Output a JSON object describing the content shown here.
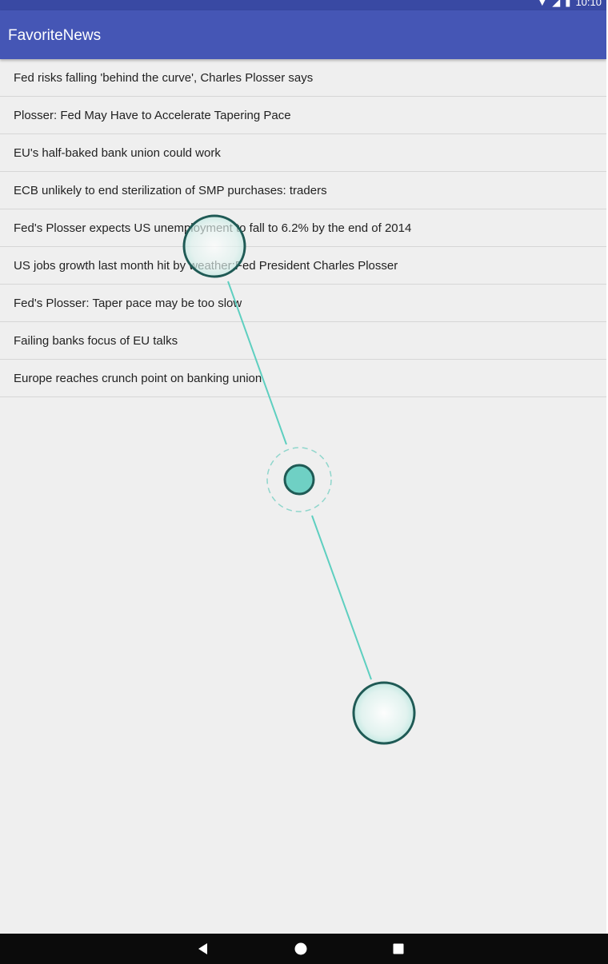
{
  "status_bar": {
    "time": "10:10",
    "icons": [
      "wifi-icon",
      "signal-icon",
      "battery-icon"
    ]
  },
  "app_bar": {
    "title": "FavoriteNews",
    "color": "#4556b5"
  },
  "news": [
    "Fed risks falling 'behind the curve', Charles Plosser says",
    "Plosser: Fed May Have to Accelerate Tapering Pace",
    "EU's half-baked bank union could work",
    "ECB unlikely to end sterilization of SMP purchases: traders",
    "Fed's Plosser expects US unemployment to fall to 6.2% by the end of 2014",
    "US jobs growth last month hit by weather:Fed President Charles Plosser",
    "Fed's Plosser: Taper pace may be too slow",
    "Failing banks focus of EU talks",
    "Europe reaches crunch point on banking union"
  ],
  "nav_bar": {
    "buttons": [
      "back-icon",
      "home-icon",
      "recents-icon"
    ]
  },
  "gesture_overlay": {
    "color": "#5ecfc0",
    "outline": "#1f5a55"
  }
}
